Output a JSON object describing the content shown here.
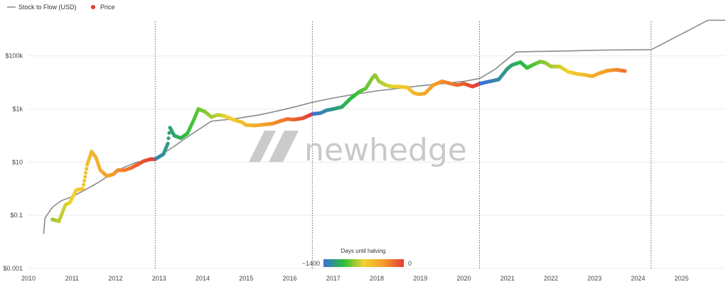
{
  "legend": [
    {
      "label": "Stock to Flow (USD)",
      "color": "#8a8a8a",
      "marker": "line"
    },
    {
      "label": "Price",
      "color": "#e53935",
      "marker": "dot"
    }
  ],
  "watermark": {
    "text": "newhedge",
    "logo": "newhedge-logo-icon"
  },
  "colorbar": {
    "title": "Days until halving",
    "min_label": "~1400",
    "max_label": "0",
    "stops": [
      "#3a6fd8",
      "#2bbf3a",
      "#f2d22e",
      "#f39a2b",
      "#e53935"
    ]
  },
  "chart_data": {
    "type": "line",
    "title": "",
    "xlabel": "",
    "ylabel": "",
    "y_scale": "log",
    "ylim": [
      0.001,
      2000000
    ],
    "xlim": [
      2010.0,
      2026.0
    ],
    "x_ticks": [
      "2010",
      "2011",
      "2012",
      "2013",
      "2014",
      "2015",
      "2016",
      "2017",
      "2018",
      "2019",
      "2020",
      "2021",
      "2022",
      "2023",
      "2024",
      "2025"
    ],
    "y_ticks": [
      {
        "value": 0.001,
        "label": "$0.001"
      },
      {
        "value": 0.1,
        "label": "$0.1"
      },
      {
        "value": 10,
        "label": "$10"
      },
      {
        "value": 1000,
        "label": "$1k"
      },
      {
        "value": 100000,
        "label": "$100k"
      }
    ],
    "halving_dates": [
      2012.91,
      2016.52,
      2020.36,
      2024.3
    ],
    "grid": true,
    "legend_position": "top-left",
    "series": [
      {
        "name": "Stock to Flow (USD)",
        "color": "#8a8a8a",
        "x": [
          2010.35,
          2010.38,
          2010.55,
          2010.75,
          2011.0,
          2011.3,
          2011.6,
          2011.9,
          2012.2,
          2012.5,
          2012.91,
          2013.3,
          2013.7,
          2014.2,
          2014.7,
          2015.3,
          2015.8,
          2016.2,
          2016.52,
          2017.0,
          2017.5,
          2018.0,
          2018.5,
          2019.0,
          2019.5,
          2020.0,
          2020.36,
          2020.7,
          2021.2,
          2021.6,
          2022.5,
          2023.2,
          2024.0,
          2024.3,
          2024.8,
          2025.3,
          2025.6,
          2026.0
        ],
        "values": [
          0.02,
          0.08,
          0.2,
          0.35,
          0.5,
          0.9,
          1.7,
          3.5,
          6.5,
          10,
          14,
          35,
          100,
          350,
          420,
          600,
          900,
          1300,
          1800,
          2600,
          3600,
          4800,
          6000,
          7500,
          9000,
          11000,
          14000,
          30000,
          140000,
          145000,
          155000,
          165000,
          170000,
          172000,
          450000,
          1200000,
          2200000,
          2200000
        ]
      },
      {
        "name": "Price",
        "x": [
          2010.55,
          2010.7,
          2010.85,
          2010.95,
          2011.1,
          2011.25,
          2011.35,
          2011.45,
          2011.55,
          2011.65,
          2011.8,
          2011.95,
          2012.05,
          2012.2,
          2012.35,
          2012.5,
          2012.65,
          2012.8,
          2012.91,
          2013.1,
          2013.2,
          2013.25,
          2013.35,
          2013.5,
          2013.65,
          2013.8,
          2013.9,
          2014.05,
          2014.2,
          2014.35,
          2014.5,
          2014.7,
          2014.9,
          2015.0,
          2015.2,
          2015.4,
          2015.6,
          2015.8,
          2015.95,
          2016.1,
          2016.3,
          2016.52,
          2016.7,
          2016.85,
          2017.0,
          2017.2,
          2017.4,
          2017.6,
          2017.75,
          2017.9,
          2017.96,
          2018.05,
          2018.2,
          2018.35,
          2018.5,
          2018.7,
          2018.85,
          2018.95,
          2019.1,
          2019.3,
          2019.5,
          2019.7,
          2019.85,
          2020.0,
          2020.2,
          2020.36,
          2020.6,
          2020.8,
          2021.0,
          2021.1,
          2021.3,
          2021.45,
          2021.6,
          2021.75,
          2021.87,
          2022.0,
          2022.2,
          2022.4,
          2022.6,
          2022.8,
          2022.95,
          2023.1,
          2023.3,
          2023.5,
          2023.7
        ],
        "values": [
          0.07,
          0.06,
          0.25,
          0.3,
          0.9,
          1.0,
          8,
          25,
          15,
          5,
          3,
          3.5,
          5,
          5,
          6,
          8,
          11,
          13,
          13,
          20,
          50,
          200,
          100,
          80,
          120,
          400,
          1000,
          800,
          500,
          600,
          550,
          400,
          320,
          250,
          240,
          260,
          280,
          360,
          420,
          400,
          450,
          650,
          700,
          900,
          1000,
          1200,
          2500,
          4500,
          6000,
          15000,
          19000,
          11000,
          8000,
          7000,
          7000,
          6500,
          4000,
          3600,
          3800,
          8000,
          11000,
          9000,
          8000,
          9000,
          7000,
          9000,
          11000,
          13000,
          33000,
          45000,
          58000,
          35000,
          47000,
          61000,
          55000,
          40000,
          40000,
          25000,
          21000,
          19000,
          17000,
          22000,
          28000,
          30000,
          27000
        ]
      }
    ]
  }
}
